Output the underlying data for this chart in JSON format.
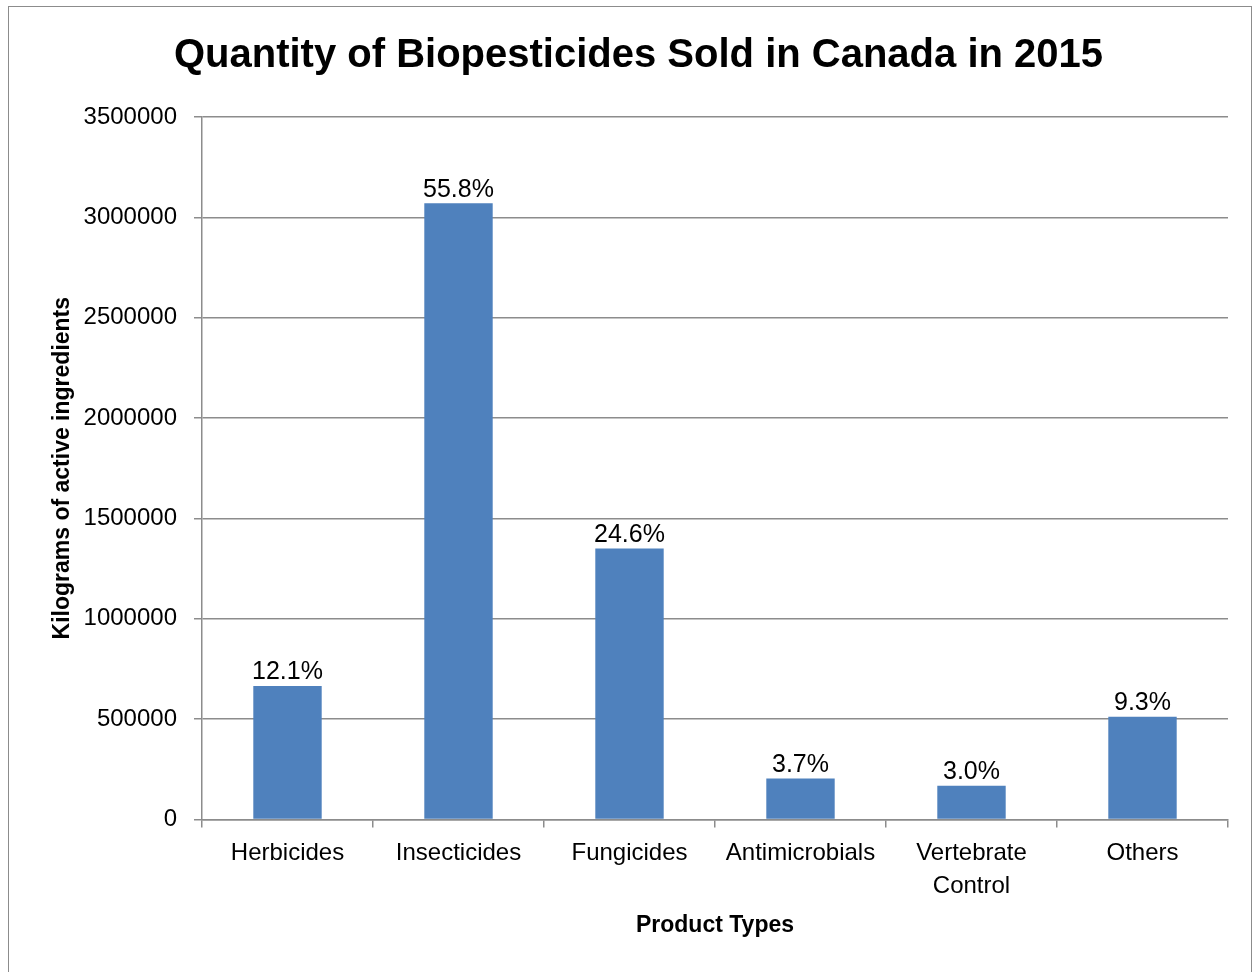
{
  "chart_data": {
    "type": "bar",
    "title": "Quantity of Biopesticides Sold in Canada in 2015",
    "xlabel": "Product Types",
    "ylabel": "Kilograms of active ingredients",
    "categories": [
      "Herbicides",
      "Insecticides",
      "Fungicides",
      "Antimicrobials",
      "Vertebrate Control",
      "Others"
    ],
    "values": [
      665000,
      3070000,
      1350000,
      204000,
      168000,
      512000
    ],
    "color": "#4f81bd",
    "ylim": [
      0,
      3500000
    ],
    "yticks": [
      0,
      500000,
      1000000,
      1500000,
      2000000,
      2500000,
      3000000,
      3500000
    ],
    "grid": "y",
    "annotations": [
      {
        "text": "12.1%",
        "x": "Herbicides",
        "y": 665000
      },
      {
        "text": "55.8%",
        "x": "Insecticides",
        "y": 3070000
      },
      {
        "text": "24.6%",
        "x": "Fungicides",
        "y": 1350000
      },
      {
        "text": "3.7%",
        "x": "Antimicrobials",
        "y": 204000
      },
      {
        "text": "3.0%",
        "x": "Vertebrate Control",
        "y": 168000
      },
      {
        "text": "9.3%",
        "x": "Others",
        "y": 512000
      }
    ]
  }
}
